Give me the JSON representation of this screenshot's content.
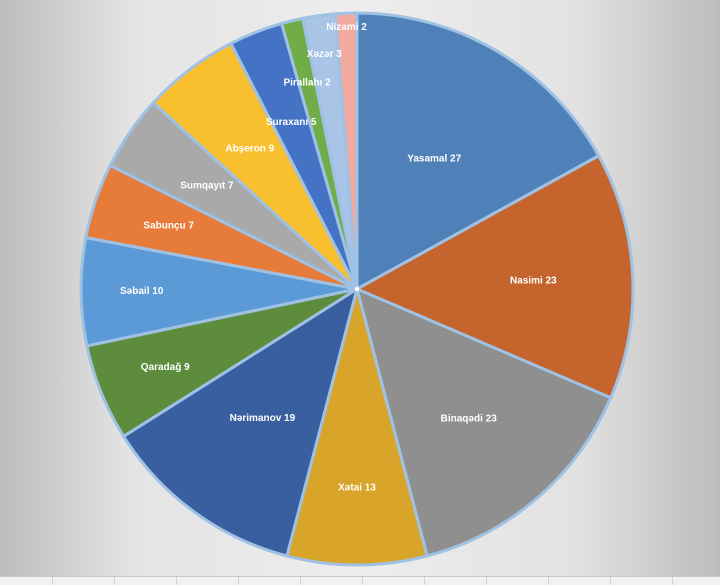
{
  "chart_data": {
    "type": "pie",
    "title": "",
    "categories": [
      "Yasamal",
      "Nəsimi",
      "Binəqədi",
      "Xətai",
      "Nərimanov",
      "Qaradağ",
      "Səbail",
      "Sabunçu",
      "Sumqayıt",
      "Abşeron",
      "Suraxanı",
      "Pirallahı",
      "Xəzər",
      "Nizami"
    ],
    "values": [
      27,
      23,
      23,
      13,
      19,
      9,
      10,
      7,
      7,
      9,
      5,
      2,
      3,
      2
    ],
    "labels": [
      "Yasamal 27",
      "Nasimi 23",
      "Binaqədi 23",
      "Xətai 13",
      "Nərimanov 19",
      "Qaradağ 9",
      "Səbail 10",
      "Sabunçu 7",
      "Sumqayıt 7",
      "Abşeron 9",
      "Suraxanı 5",
      "Pirallahı 2",
      "Xəzər 3",
      "Nizami 2"
    ],
    "colors": [
      "#4f80b8",
      "#c6642d",
      "#8f8f8f",
      "#d9a42a",
      "#3a5fa0",
      "#5c8c3c",
      "#5b9ad6",
      "#e77b3a",
      "#a9a9a9",
      "#f8bf2f",
      "#4472c4",
      "#70ad47",
      "#a9c4e7",
      "#f1a9a0"
    ],
    "start": "12 o'clock",
    "direction": "clockwise",
    "legend": "none"
  }
}
